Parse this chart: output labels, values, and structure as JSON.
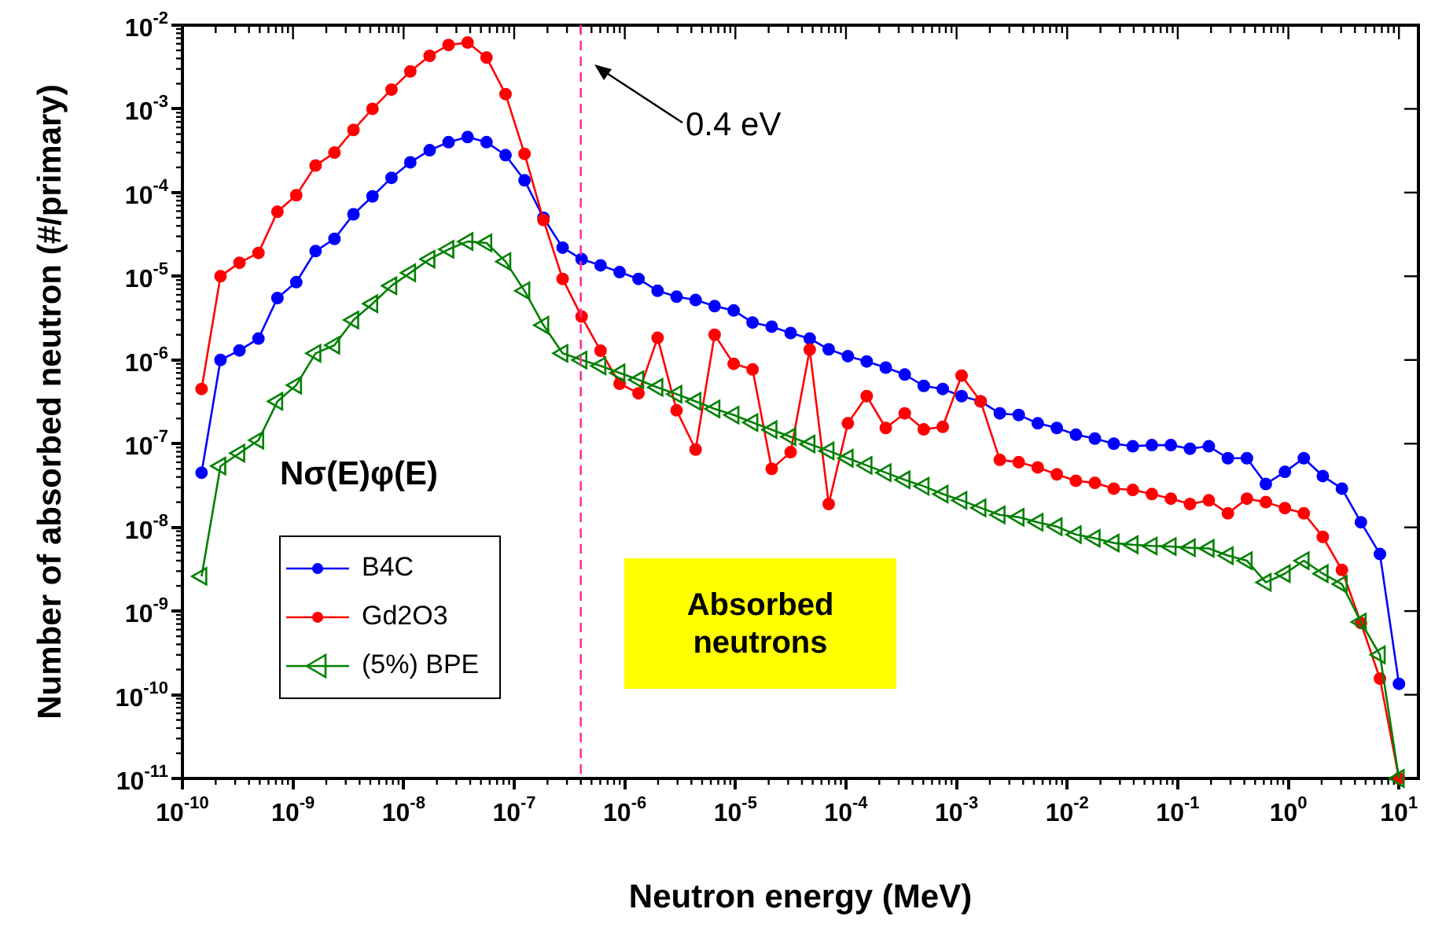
{
  "chart_data": {
    "type": "line",
    "xlabel": "Neutron energy (MeV)",
    "ylabel": "Number of absorbed neutron (#/primary)",
    "log": "xy",
    "grid": false,
    "legend": "left",
    "xlim": [
      1e-10,
      15
    ],
    "ylim": [
      1e-11,
      0.01
    ],
    "xticks": [
      {
        "value": 1e-10,
        "label": "10$^{-10}$"
      },
      {
        "value": 1e-09,
        "label": "10$^{-9}$"
      },
      {
        "value": 1e-08,
        "label": "10$^{-8}$"
      },
      {
        "value": 1e-07,
        "label": "10$^{-7}$"
      },
      {
        "value": 1e-06,
        "label": "10$^{-6}$"
      },
      {
        "value": 1e-05,
        "label": "10$^{-5}$"
      },
      {
        "value": 0.0001,
        "label": "10$^{-4}$"
      },
      {
        "value": 0.001,
        "label": "10$^{-3}$"
      },
      {
        "value": 0.01,
        "label": "10$^{-2}$"
      },
      {
        "value": 0.1,
        "label": "10$^{-1}$"
      },
      {
        "value": 1,
        "label": "10$^{0}$"
      },
      {
        "value": 10,
        "label": "10$^{1}$"
      }
    ],
    "yticks": [
      {
        "value": 1e-11,
        "label": "10$^{-11}$"
      },
      {
        "value": 1e-10,
        "label": "10$^{-10}$"
      },
      {
        "value": 1e-09,
        "label": "10$^{-9}$"
      },
      {
        "value": 1e-08,
        "label": "10$^{-8}$"
      },
      {
        "value": 1e-07,
        "label": "10$^{-7}$"
      },
      {
        "value": 1e-06,
        "label": "10$^{-6}$"
      },
      {
        "value": 1e-05,
        "label": "10$^{-5}$"
      },
      {
        "value": 0.0001,
        "label": "10$^{-4}$"
      },
      {
        "value": 0.001,
        "label": "10$^{-3}$"
      },
      {
        "value": 0.01,
        "label": "10$^{-2}$"
      }
    ],
    "x": [
      1.49e-10,
      2.21e-10,
      3.28e-10,
      4.87e-10,
      7.23e-10,
      1.07e-09,
      1.6e-09,
      2.37e-09,
      3.52e-09,
      5.23e-09,
      7.77e-09,
      1.15e-08,
      1.72e-08,
      2.55e-08,
      3.79e-08,
      5.62e-08,
      8.35e-08,
      1.24e-07,
      1.84e-07,
      2.74e-07,
      4.07e-07,
      6.04e-07,
      8.98e-07,
      1.33e-06,
      1.98e-06,
      2.94e-06,
      4.37e-06,
      6.49e-06,
      9.65e-06,
      1.43e-05,
      2.13e-05,
      3.16e-05,
      4.7e-05,
      6.98e-05,
      0.000104,
      0.000154,
      0.000229,
      0.00034,
      0.000505,
      0.00075,
      0.00111,
      0.00165,
      0.00246,
      0.00365,
      0.00542,
      0.00806,
      0.012,
      0.0178,
      0.0264,
      0.0392,
      0.0583,
      0.0866,
      0.129,
      0.191,
      0.284,
      0.422,
      0.626,
      0.931,
      1.38,
      2.05,
      3.05,
      4.53,
      6.73,
      10
    ],
    "series": [
      {
        "name": "B4C",
        "color": "#0000ff",
        "marker": "circle",
        "values": [
          4.5e-08,
          1e-06,
          1.3e-06,
          1.8e-06,
          5.5e-06,
          8.5e-06,
          2e-05,
          2.8e-05,
          5.5e-05,
          9e-05,
          0.00015,
          0.00023,
          0.00032,
          0.0004,
          0.00046,
          0.0004,
          0.00028,
          0.00014,
          5e-05,
          2.2e-05,
          1.6e-05,
          1.35e-05,
          1.12e-05,
          9.3e-06,
          6.7e-06,
          5.7e-06,
          5.2e-06,
          4.4e-06,
          3.9e-06,
          2.8e-06,
          2.5e-06,
          2.1e-06,
          1.8e-06,
          1.34e-06,
          1.11e-06,
          9.6e-07,
          8.1e-07,
          6.7e-07,
          4.9e-07,
          4.5e-07,
          3.7e-07,
          3.2e-07,
          2.3e-07,
          2.2e-07,
          1.75e-07,
          1.54e-07,
          1.28e-07,
          1.15e-07,
          1e-07,
          9.3e-08,
          9.6e-08,
          9.6e-08,
          8.7e-08,
          9.3e-08,
          6.7e-08,
          6.7e-08,
          3.3e-08,
          4.6e-08,
          6.7e-08,
          4.1e-08,
          2.9e-08,
          1.15e-08,
          4.8e-09,
          1.35e-10
        ]
      },
      {
        "name": "Gd2O3",
        "color": "#ff0000",
        "marker": "circle",
        "values": [
          4.5e-07,
          1e-05,
          1.45e-05,
          1.9e-05,
          5.9e-05,
          9.3e-05,
          0.00021,
          0.0003,
          0.00056,
          0.001,
          0.0017,
          0.0028,
          0.0043,
          0.0058,
          0.0062,
          0.0041,
          0.0015,
          0.00029,
          4.7e-05,
          9.3e-06,
          3.3e-06,
          1.29e-06,
          5.2e-07,
          4e-07,
          1.84e-06,
          2.5e-07,
          8.5e-08,
          2e-06,
          9e-07,
          7.7e-07,
          5e-08,
          7.9e-08,
          1.33e-06,
          1.9e-08,
          1.75e-07,
          3.7e-07,
          1.54e-07,
          2.3e-07,
          1.48e-07,
          1.59e-07,
          6.5e-07,
          3.2e-07,
          6.4e-08,
          6e-08,
          5.2e-08,
          4.3e-08,
          3.6e-08,
          3.4e-08,
          2.9e-08,
          2.8e-08,
          2.5e-08,
          2.2e-08,
          1.9e-08,
          2.1e-08,
          1.47e-08,
          2.2e-08,
          2e-08,
          1.7e-08,
          1.47e-08,
          7.7e-09,
          3.1e-09,
          7.2e-10,
          1.56e-10,
          1e-11
        ]
      },
      {
        "name": "(5%) BPE",
        "color": "#008000",
        "marker": "triangle",
        "values": [
          2.6e-09,
          5.4e-08,
          7.7e-08,
          1.1e-07,
          3.2e-07,
          5e-07,
          1.2e-06,
          1.5e-06,
          3e-06,
          4.7e-06,
          7.7e-06,
          1.1e-05,
          1.6e-05,
          2.1e-05,
          2.6e-05,
          2.5e-05,
          1.5e-05,
          6.7e-06,
          2.6e-06,
          1.2e-06,
          1e-06,
          8.5e-07,
          7e-07,
          5.8e-07,
          4.7e-07,
          3.9e-07,
          3.2e-07,
          2.6e-07,
          2.2e-07,
          1.79e-07,
          1.47e-07,
          1.21e-07,
          9.9e-08,
          8.2e-08,
          6.7e-08,
          5.5e-08,
          4.5e-08,
          3.7e-08,
          3.1e-08,
          2.5e-08,
          2.1e-08,
          1.71e-08,
          1.41e-08,
          1.32e-08,
          1.15e-08,
          1.02e-08,
          8.2e-09,
          7.4e-09,
          6.5e-09,
          6.2e-09,
          6e-09,
          5.9e-09,
          5.7e-09,
          5.6e-09,
          4.6e-09,
          4e-09,
          2.2e-09,
          2.8e-09,
          4e-09,
          2.8e-09,
          2.1e-09,
          7.4e-10,
          3e-10,
          1e-11
        ]
      }
    ],
    "ref_lines": [
      {
        "axis": "x",
        "value": 4e-07,
        "color": "#ff3399",
        "line_style": "dashed"
      }
    ],
    "annotations": [
      "Nσ(E)φ(E)",
      "Absorbed neutrons",
      "0.4 eV"
    ]
  }
}
